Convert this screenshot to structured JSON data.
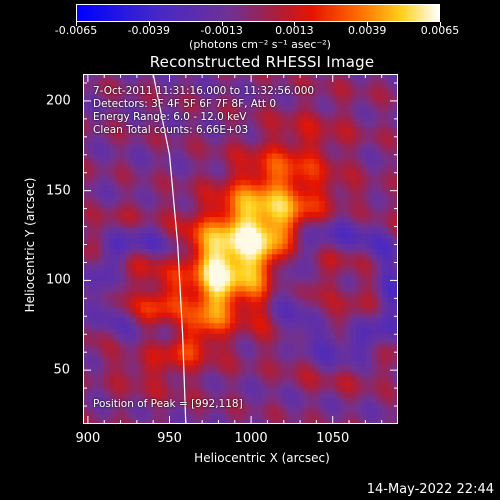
{
  "colorbar": {
    "tick_labels": [
      "-0.0065",
      "-0.0039",
      "-0.0013",
      "0.0013",
      "0.0039",
      "0.0065"
    ],
    "unit_label": "(photons cm⁻² s⁻¹ asec⁻²)",
    "range": [
      -0.0065,
      0.0065
    ]
  },
  "chart_data": {
    "type": "heatmap",
    "title": "Reconstructed RHESSI Image",
    "xlabel": "Heliocentric X (arcsec)",
    "ylabel": "Heliocentric Y (arcsec)",
    "xlim": [
      897,
      1090
    ],
    "ylim": [
      20,
      215
    ],
    "x_ticks": [
      900,
      950,
      1000,
      1050
    ],
    "y_ticks": [
      50,
      100,
      150,
      200
    ],
    "peak": [
      992,
      118
    ],
    "value_range": [
      -0.0065,
      0.0065
    ],
    "limb_curve": [
      [
        940,
        215
      ],
      [
        950,
        170
      ],
      [
        955,
        120
      ],
      [
        958,
        70
      ],
      [
        960,
        20
      ]
    ]
  },
  "info": {
    "line1": "7-Oct-2011 11:31:16.000 to 11:32:56.000",
    "line2": "Detectors: 3F 4F 5F 6F 7F 8F, Att 0",
    "line3": "Energy Range: 6.0 - 12.0 keV",
    "line4": "Clean    Total counts: 6.66E+03",
    "peak_text": "Position of Peak = [992,118]"
  },
  "datestamp": "14-May-2022 22:44",
  "colors": {
    "background": "#000000",
    "text": "#ffffff"
  }
}
